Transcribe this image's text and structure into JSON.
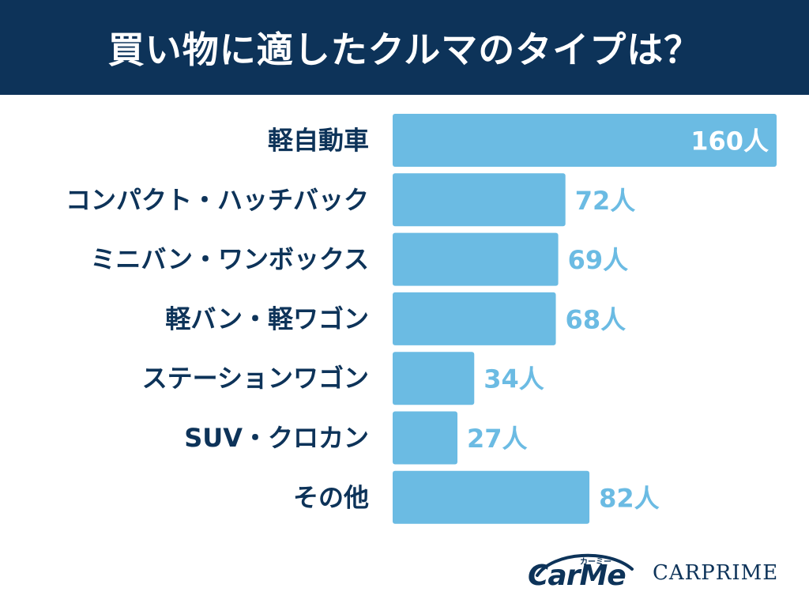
{
  "header": {
    "title": "買い物に適したクルマのタイプは？"
  },
  "colors": {
    "header_bg": "#0d3359",
    "bar": "#6bbbe3",
    "label": "#0d3359",
    "value_inside": "#ffffff",
    "value_outside": "#6bbbe3"
  },
  "chart_data": {
    "type": "bar",
    "orientation": "horizontal",
    "categories": [
      "軽自動車",
      "コンパクト・ハッチバック",
      "ミニバン・ワンボックス",
      "軽バン・軽ワゴン",
      "ステーションワゴン",
      "SUV・クロカン",
      "その他"
    ],
    "values": [
      160,
      72,
      69,
      68,
      34,
      27,
      82
    ],
    "value_labels": [
      "160人",
      "72人",
      "69人",
      "68人",
      "34人",
      "27人",
      "82人"
    ],
    "unit": "人",
    "xlim": [
      0,
      160
    ],
    "grid": false,
    "legend": "none"
  },
  "logos": {
    "carme": "CarMe",
    "carme_kana": "カーミー",
    "carprime": "CARPRIME"
  }
}
